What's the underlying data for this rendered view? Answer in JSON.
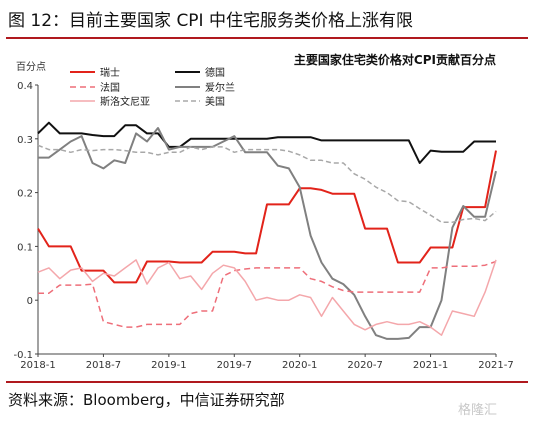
{
  "header": {
    "title": "图 12：目前主要国家 CPI 中住宅服务类价格上涨有限"
  },
  "footer": {
    "source": "资料来源：Bloomberg，中信证券研究部",
    "watermark": "格隆汇"
  },
  "chart_data": {
    "type": "line",
    "title": "主要国家住宅类价格对CPI贡献百分点",
    "ylabel": "百分点",
    "ylim": [
      -0.1,
      0.4
    ],
    "yticks": [
      "-0.1",
      "0",
      "0.1",
      "0.2",
      "0.3",
      "0.4"
    ],
    "xticks": [
      "2018-1",
      "2018-7",
      "2019-1",
      "2019-7",
      "2020-1",
      "2020-7",
      "2021-1",
      "2021-7"
    ],
    "legend_position": "top-left, two rows of three",
    "series": [
      {
        "name": "瑞士",
        "color": "#e2231a",
        "dash": "",
        "width": 2,
        "values": [
          0.133,
          0.1,
          0.1,
          0.1,
          0.055,
          0.055,
          0.055,
          0.033,
          0.033,
          0.033,
          0.072,
          0.072,
          0.072,
          0.07,
          0.07,
          0.07,
          0.09,
          0.09,
          0.09,
          0.087,
          0.087,
          0.178,
          0.178,
          0.178,
          0.208,
          0.208,
          0.205,
          0.198,
          0.198,
          0.198,
          0.133,
          0.133,
          0.133,
          0.07,
          0.07,
          0.07,
          0.098,
          0.098,
          0.098,
          0.173,
          0.173,
          0.173,
          0.278
        ]
      },
      {
        "name": "德国",
        "color": "#111111",
        "dash": "",
        "width": 2,
        "values": [
          0.31,
          0.33,
          0.31,
          0.31,
          0.31,
          0.307,
          0.305,
          0.305,
          0.325,
          0.325,
          0.31,
          0.31,
          0.285,
          0.285,
          0.3,
          0.3,
          0.3,
          0.3,
          0.3,
          0.3,
          0.3,
          0.3,
          0.303,
          0.303,
          0.303,
          0.303,
          0.297,
          0.297,
          0.297,
          0.297,
          0.297,
          0.297,
          0.297,
          0.297,
          0.297,
          0.255,
          0.278,
          0.276,
          0.276,
          0.276,
          0.295,
          0.295,
          0.295
        ]
      },
      {
        "name": "爱尔兰",
        "color": "#808080",
        "dash": "",
        "width": 2,
        "values": [
          0.265,
          0.265,
          0.28,
          0.295,
          0.305,
          0.255,
          0.245,
          0.26,
          0.255,
          0.31,
          0.295,
          0.32,
          0.28,
          0.285,
          0.285,
          0.285,
          0.285,
          0.295,
          0.305,
          0.275,
          0.275,
          0.275,
          0.25,
          0.245,
          0.21,
          0.12,
          0.07,
          0.04,
          0.03,
          0.01,
          -0.03,
          -0.065,
          -0.072,
          -0.072,
          -0.07,
          -0.05,
          -0.05,
          0.0,
          0.135,
          0.175,
          0.155,
          0.155,
          0.24
        ]
      },
      {
        "name": "法国",
        "color": "#ee6e79",
        "dash": "6,4",
        "width": 1.5,
        "values": [
          0.013,
          0.013,
          0.028,
          0.028,
          0.028,
          0.03,
          -0.04,
          -0.045,
          -0.05,
          -0.05,
          -0.045,
          -0.045,
          -0.045,
          -0.045,
          -0.025,
          -0.02,
          -0.02,
          0.045,
          0.055,
          0.058,
          0.06,
          0.06,
          0.06,
          0.06,
          0.06,
          0.04,
          0.035,
          0.025,
          0.018,
          0.015,
          0.015,
          0.015,
          0.015,
          0.015,
          0.015,
          0.015,
          0.06,
          0.06,
          0.063,
          0.063,
          0.063,
          0.065,
          0.072
        ]
      },
      {
        "name": "美国",
        "color": "#a8a8a8",
        "dash": "5,3",
        "width": 1.5,
        "values": [
          0.288,
          0.28,
          0.28,
          0.275,
          0.28,
          0.278,
          0.28,
          0.28,
          0.278,
          0.275,
          0.275,
          0.27,
          0.275,
          0.275,
          0.285,
          0.28,
          0.285,
          0.285,
          0.275,
          0.28,
          0.28,
          0.28,
          0.28,
          0.277,
          0.27,
          0.26,
          0.26,
          0.255,
          0.255,
          0.235,
          0.225,
          0.21,
          0.2,
          0.185,
          0.183,
          0.17,
          0.158,
          0.145,
          0.145,
          0.15,
          0.152,
          0.148,
          0.165
        ]
      },
      {
        "name": "斯洛文尼亚",
        "color": "#f4a7ab",
        "dash": "",
        "width": 1.5,
        "values": [
          0.052,
          0.06,
          0.04,
          0.056,
          0.06,
          0.035,
          0.05,
          0.045,
          0.06,
          0.075,
          0.03,
          0.06,
          0.07,
          0.04,
          0.045,
          0.02,
          0.05,
          0.065,
          0.06,
          0.035,
          0.0,
          0.005,
          0.0,
          0.0,
          0.01,
          0.005,
          -0.03,
          0.005,
          -0.02,
          -0.045,
          -0.055,
          -0.045,
          -0.04,
          -0.045,
          -0.045,
          -0.04,
          -0.05,
          -0.065,
          -0.02,
          -0.025,
          -0.03,
          0.015,
          0.075
        ]
      }
    ]
  }
}
